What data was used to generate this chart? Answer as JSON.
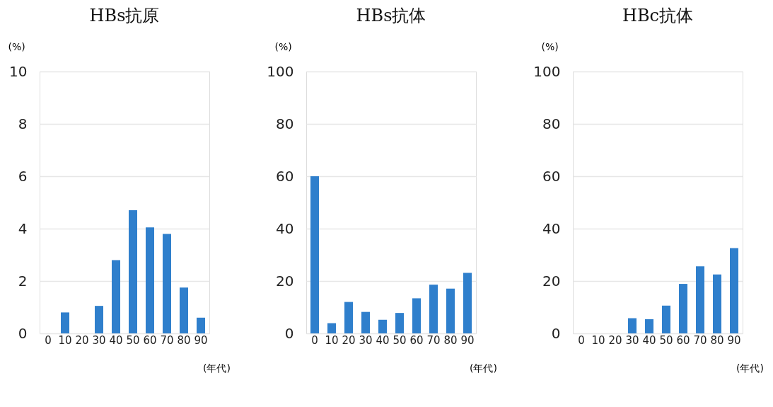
{
  "chart_data": [
    {
      "type": "bar",
      "title": "HBs抗原",
      "ylabel": "(%)",
      "xlabel": "(年代)",
      "categories": [
        "0",
        "10",
        "20",
        "30",
        "40",
        "50",
        "60",
        "70",
        "80",
        "90"
      ],
      "values": [
        0,
        0.8,
        0,
        1.05,
        2.8,
        4.7,
        4.05,
        3.8,
        1.75,
        0.6
      ],
      "color": "#2f7fcc",
      "ylim": [
        0,
        10
      ],
      "yticks": [
        0,
        2,
        4,
        6,
        8,
        10
      ],
      "grid": "y"
    },
    {
      "type": "bar",
      "title": "HBs抗体",
      "ylabel": "(%)",
      "xlabel": "(年代)",
      "categories": [
        "0",
        "10",
        "20",
        "30",
        "40",
        "50",
        "60",
        "70",
        "80",
        "90"
      ],
      "values": [
        60,
        3.9,
        12,
        8.2,
        5.2,
        7.8,
        13.4,
        18.6,
        17.1,
        23.1
      ],
      "color": "#2f7fcc",
      "ylim": [
        0,
        100
      ],
      "yticks": [
        0,
        20,
        40,
        60,
        80,
        100
      ],
      "grid": "y"
    },
    {
      "type": "bar",
      "title": "HBc抗体",
      "ylabel": "(%)",
      "xlabel": "(年代)",
      "categories": [
        "0",
        "10",
        "20",
        "30",
        "40",
        "50",
        "60",
        "70",
        "80",
        "90"
      ],
      "values": [
        0,
        0,
        0,
        5.8,
        5.4,
        10.6,
        18.9,
        25.6,
        22.5,
        32.6
      ],
      "color": "#2f7fcc",
      "ylim": [
        0,
        100
      ],
      "yticks": [
        0,
        20,
        40,
        60,
        80,
        100
      ],
      "grid": "y"
    }
  ]
}
